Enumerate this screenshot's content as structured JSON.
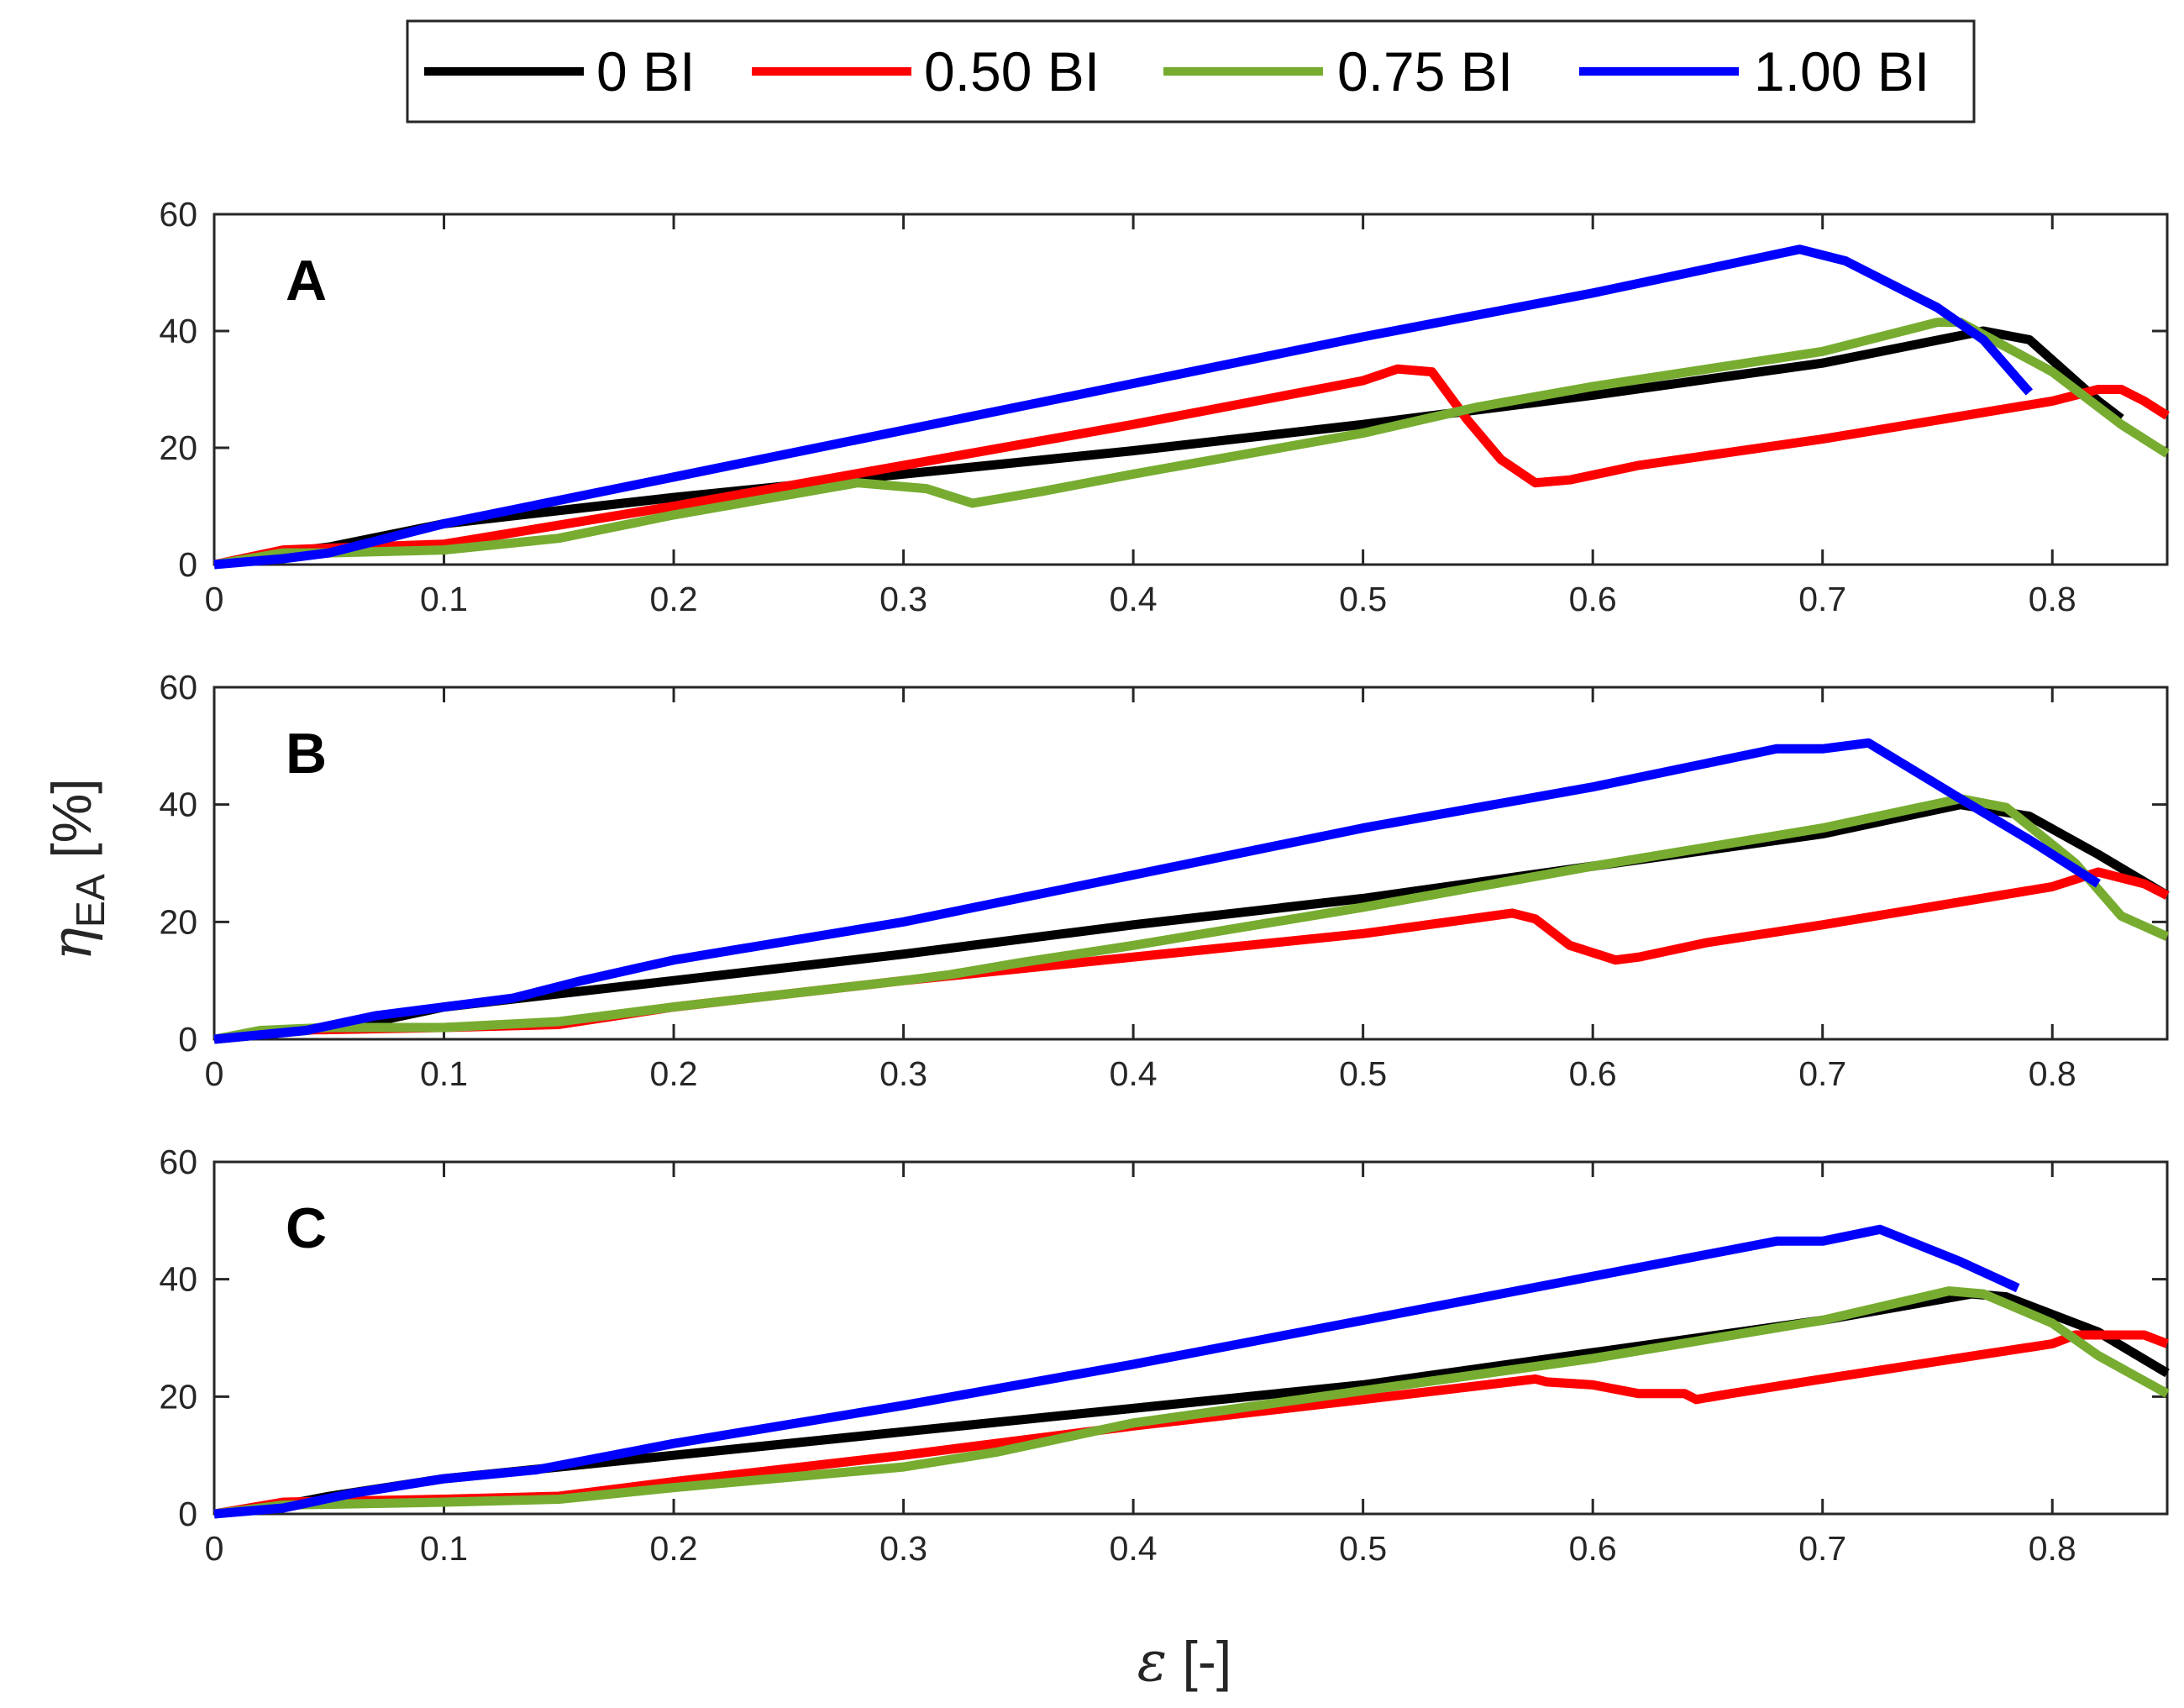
{
  "colors": {
    "0 BI": "#000000",
    "0.50 BI": "#ff0000",
    "0.75 BI": "#77ac30",
    "1.00 BI": "#0000ff",
    "axis": "#262626"
  },
  "chart_data": [
    {
      "type": "line",
      "panel": "A",
      "xlabel": "ε [-]",
      "ylabel": "ηEA [%]",
      "xlim": [
        0,
        0.85
      ],
      "ylim": [
        0,
        60
      ],
      "xticks": [
        "0",
        "0.1",
        "0.2",
        "0.3",
        "0.4",
        "0.5",
        "0.6",
        "0.7",
        "0.8"
      ],
      "yticks": [
        "0",
        "20",
        "40",
        "60"
      ],
      "legend": [
        "0 BI",
        "0.50 BI",
        "0.75 BI",
        "1.00 BI"
      ],
      "series": [
        {
          "name": "0 BI",
          "points": [
            [
              0,
              0
            ],
            [
              0.03,
              2
            ],
            [
              0.05,
              3
            ],
            [
              0.1,
              7
            ],
            [
              0.2,
              11.5
            ],
            [
              0.3,
              15.5
            ],
            [
              0.4,
              19.5
            ],
            [
              0.5,
              24
            ],
            [
              0.6,
              29
            ],
            [
              0.7,
              34.5
            ],
            [
              0.77,
              40
            ],
            [
              0.79,
              38.5
            ],
            [
              0.82,
              28
            ],
            [
              0.83,
              25
            ]
          ]
        },
        {
          "name": "0.50 BI",
          "points": [
            [
              0,
              0
            ],
            [
              0.03,
              2.5
            ],
            [
              0.05,
              2.8
            ],
            [
              0.1,
              3.5
            ],
            [
              0.2,
              10
            ],
            [
              0.3,
              17
            ],
            [
              0.4,
              24
            ],
            [
              0.5,
              31.5
            ],
            [
              0.515,
              33.5
            ],
            [
              0.53,
              33
            ],
            [
              0.545,
              25
            ],
            [
              0.56,
              18
            ],
            [
              0.575,
              14
            ],
            [
              0.59,
              14.5
            ],
            [
              0.62,
              17
            ],
            [
              0.7,
              21.5
            ],
            [
              0.8,
              28
            ],
            [
              0.82,
              30
            ],
            [
              0.83,
              30
            ],
            [
              0.84,
              28
            ],
            [
              0.85,
              25.5
            ]
          ]
        },
        {
          "name": "0.75 BI",
          "points": [
            [
              0,
              0
            ],
            [
              0.03,
              2
            ],
            [
              0.05,
              2
            ],
            [
              0.1,
              2.5
            ],
            [
              0.15,
              4.5
            ],
            [
              0.2,
              8.5
            ],
            [
              0.28,
              14
            ],
            [
              0.31,
              13
            ],
            [
              0.33,
              10.5
            ],
            [
              0.36,
              12.5
            ],
            [
              0.4,
              15.5
            ],
            [
              0.5,
              22.5
            ],
            [
              0.55,
              27
            ],
            [
              0.6,
              30.5
            ],
            [
              0.7,
              36.5
            ],
            [
              0.75,
              41.5
            ],
            [
              0.76,
              41.5
            ],
            [
              0.8,
              33
            ],
            [
              0.83,
              24
            ],
            [
              0.85,
              19
            ]
          ]
        },
        {
          "name": "1.00 BI",
          "points": [
            [
              0,
              0
            ],
            [
              0.03,
              1
            ],
            [
              0.05,
              2
            ],
            [
              0.1,
              7
            ],
            [
              0.2,
              15
            ],
            [
              0.3,
              23
            ],
            [
              0.4,
              31
            ],
            [
              0.5,
              39
            ],
            [
              0.6,
              46.5
            ],
            [
              0.69,
              54
            ],
            [
              0.71,
              52
            ],
            [
              0.75,
              44
            ],
            [
              0.77,
              38.5
            ],
            [
              0.79,
              29.5
            ]
          ]
        }
      ]
    },
    {
      "type": "line",
      "panel": "B",
      "xlabel": "ε [-]",
      "ylabel": "ηEA [%]",
      "xlim": [
        0,
        0.85
      ],
      "ylim": [
        0,
        60
      ],
      "xticks": [
        "0",
        "0.1",
        "0.2",
        "0.3",
        "0.4",
        "0.5",
        "0.6",
        "0.7",
        "0.8"
      ],
      "yticks": [
        "0",
        "20",
        "40",
        "60"
      ],
      "legend": [
        "0 BI",
        "0.50 BI",
        "0.75 BI",
        "1.00 BI"
      ],
      "series": [
        {
          "name": "0 BI",
          "points": [
            [
              0,
              0
            ],
            [
              0.04,
              1.5
            ],
            [
              0.07,
              3
            ],
            [
              0.1,
              5.5
            ],
            [
              0.2,
              10
            ],
            [
              0.3,
              14.5
            ],
            [
              0.4,
              19.5
            ],
            [
              0.5,
              24
            ],
            [
              0.6,
              29.5
            ],
            [
              0.7,
              35
            ],
            [
              0.76,
              40
            ],
            [
              0.79,
              38
            ],
            [
              0.82,
              31.5
            ],
            [
              0.85,
              24.5
            ]
          ]
        },
        {
          "name": "0.50 BI",
          "points": [
            [
              0,
              0
            ],
            [
              0.03,
              1.5
            ],
            [
              0.1,
              2
            ],
            [
              0.15,
              2.5
            ],
            [
              0.2,
              5.5
            ],
            [
              0.3,
              10
            ],
            [
              0.4,
              14
            ],
            [
              0.5,
              18
            ],
            [
              0.565,
              21.5
            ],
            [
              0.575,
              20.5
            ],
            [
              0.59,
              16
            ],
            [
              0.61,
              13.5
            ],
            [
              0.62,
              14
            ],
            [
              0.65,
              16.5
            ],
            [
              0.7,
              19.5
            ],
            [
              0.8,
              26
            ],
            [
              0.82,
              28.5
            ],
            [
              0.84,
              26.5
            ],
            [
              0.85,
              24.5
            ]
          ]
        },
        {
          "name": "0.75 BI",
          "points": [
            [
              0,
              0
            ],
            [
              0.02,
              1.5
            ],
            [
              0.05,
              2
            ],
            [
              0.1,
              2
            ],
            [
              0.15,
              3
            ],
            [
              0.2,
              5.5
            ],
            [
              0.3,
              10
            ],
            [
              0.32,
              11
            ],
            [
              0.35,
              13
            ],
            [
              0.4,
              16
            ],
            [
              0.5,
              22.5
            ],
            [
              0.6,
              29.5
            ],
            [
              0.7,
              36
            ],
            [
              0.76,
              41
            ],
            [
              0.78,
              39.5
            ],
            [
              0.81,
              30
            ],
            [
              0.83,
              21
            ],
            [
              0.85,
              17.5
            ]
          ]
        },
        {
          "name": "1.00 BI",
          "points": [
            [
              0,
              0
            ],
            [
              0.04,
              1.5
            ],
            [
              0.07,
              4
            ],
            [
              0.1,
              5.5
            ],
            [
              0.13,
              7
            ],
            [
              0.16,
              10
            ],
            [
              0.2,
              13.5
            ],
            [
              0.3,
              20
            ],
            [
              0.4,
              28
            ],
            [
              0.5,
              36
            ],
            [
              0.6,
              43
            ],
            [
              0.68,
              49.5
            ],
            [
              0.7,
              49.5
            ],
            [
              0.72,
              50.5
            ],
            [
              0.76,
              41
            ],
            [
              0.79,
              34
            ],
            [
              0.82,
              26.5
            ]
          ]
        }
      ]
    },
    {
      "type": "line",
      "panel": "C",
      "xlabel": "ε [-]",
      "ylabel": "ηEA [%]",
      "xlim": [
        0,
        0.85
      ],
      "ylim": [
        0,
        60
      ],
      "xticks": [
        "0",
        "0.1",
        "0.2",
        "0.3",
        "0.4",
        "0.5",
        "0.6",
        "0.7",
        "0.8"
      ],
      "yticks": [
        "0",
        "20",
        "40",
        "60"
      ],
      "legend": [
        "0 BI",
        "0.50 BI",
        "0.75 BI",
        "1.00 BI"
      ],
      "series": [
        {
          "name": "0 BI",
          "points": [
            [
              0,
              0
            ],
            [
              0.03,
              1.5
            ],
            [
              0.05,
              3
            ],
            [
              0.1,
              6
            ],
            [
              0.2,
              10
            ],
            [
              0.3,
              14
            ],
            [
              0.4,
              18
            ],
            [
              0.5,
              22
            ],
            [
              0.6,
              27.5
            ],
            [
              0.7,
              33
            ],
            [
              0.765,
              37.5
            ],
            [
              0.78,
              37
            ],
            [
              0.82,
              31
            ],
            [
              0.85,
              24
            ]
          ]
        },
        {
          "name": "0.50 BI",
          "points": [
            [
              0,
              0
            ],
            [
              0.03,
              2
            ],
            [
              0.1,
              2.5
            ],
            [
              0.15,
              3
            ],
            [
              0.2,
              5.5
            ],
            [
              0.3,
              10
            ],
            [
              0.4,
              15
            ],
            [
              0.5,
              19.5
            ],
            [
              0.575,
              23
            ],
            [
              0.58,
              22.5
            ],
            [
              0.6,
              22
            ],
            [
              0.62,
              20.5
            ],
            [
              0.64,
              20.5
            ],
            [
              0.645,
              19.5
            ],
            [
              0.66,
              20.5
            ],
            [
              0.7,
              23
            ],
            [
              0.8,
              29
            ],
            [
              0.81,
              30.5
            ],
            [
              0.84,
              30.5
            ],
            [
              0.85,
              29
            ]
          ]
        },
        {
          "name": "0.75 BI",
          "points": [
            [
              0,
              0
            ],
            [
              0.03,
              1.5
            ],
            [
              0.1,
              2
            ],
            [
              0.15,
              2.5
            ],
            [
              0.2,
              4.5
            ],
            [
              0.3,
              8
            ],
            [
              0.34,
              10.5
            ],
            [
              0.4,
              15.5
            ],
            [
              0.5,
              21
            ],
            [
              0.6,
              26.5
            ],
            [
              0.7,
              33
            ],
            [
              0.755,
              38
            ],
            [
              0.77,
              37.5
            ],
            [
              0.8,
              32.5
            ],
            [
              0.82,
              27
            ],
            [
              0.85,
              20.5
            ]
          ]
        },
        {
          "name": "1.00 BI",
          "points": [
            [
              0,
              0
            ],
            [
              0.03,
              1
            ],
            [
              0.06,
              3.5
            ],
            [
              0.1,
              6
            ],
            [
              0.14,
              7.5
            ],
            [
              0.2,
              12
            ],
            [
              0.3,
              18.5
            ],
            [
              0.4,
              25.5
            ],
            [
              0.5,
              33
            ],
            [
              0.6,
              40.5
            ],
            [
              0.68,
              46.5
            ],
            [
              0.7,
              46.5
            ],
            [
              0.725,
              48.5
            ],
            [
              0.76,
              43
            ],
            [
              0.785,
              38.5
            ]
          ]
        }
      ]
    }
  ]
}
